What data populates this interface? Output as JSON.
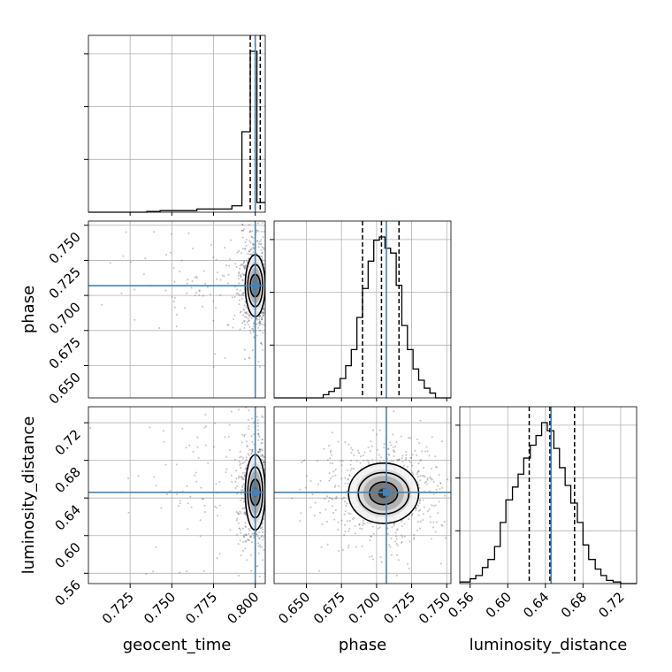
{
  "chart_data": {
    "type": "corner",
    "parameters": [
      "geocent_time",
      "phase",
      "luminosity_distance"
    ],
    "truths": {
      "geocent_time": 0.8,
      "phase": 0.707,
      "luminosity_distance": 0.646
    },
    "grid": true,
    "axes_labels": {
      "x": [
        "geocent_time",
        "phase",
        "luminosity_distance"
      ],
      "y": [
        "phase",
        "luminosity_distance"
      ]
    },
    "ticks": {
      "geocent_time": {
        "range": [
          0.7,
          0.806
        ],
        "values": [
          0.725,
          0.75,
          0.775,
          0.8
        ],
        "labels": [
          "0.725",
          "0.750",
          "0.775",
          "0.800"
        ]
      },
      "phase": {
        "range": [
          0.627,
          0.753
        ],
        "values": [
          0.65,
          0.675,
          0.7,
          0.725,
          0.75
        ],
        "labels": [
          "0.650",
          "0.675",
          "0.700",
          "0.725",
          "0.750"
        ]
      },
      "luminosity_distance": {
        "range": [
          0.549,
          0.737
        ],
        "values": [
          0.56,
          0.6,
          0.64,
          0.68,
          0.72
        ],
        "labels": [
          "0.56",
          "0.60",
          "0.64",
          "0.68",
          "0.72"
        ]
      }
    },
    "histograms": {
      "geocent_time": {
        "quantiles": [
          0.797,
          0.8,
          0.803
        ],
        "bins": [
          [
            0.7,
            0.735,
            0.0
          ],
          [
            0.735,
            0.743,
            0.005
          ],
          [
            0.743,
            0.765,
            0.01
          ],
          [
            0.765,
            0.786,
            0.02
          ],
          [
            0.786,
            0.792,
            0.04
          ],
          [
            0.792,
            0.797,
            0.5
          ],
          [
            0.797,
            0.801,
            1.0
          ],
          [
            0.801,
            0.806,
            0.06
          ]
        ]
      },
      "phase": {
        "quantiles": [
          0.69,
          0.7035,
          0.716
        ],
        "bins": [
          [
            0.627,
            0.662,
            0.0
          ],
          [
            0.662,
            0.666,
            0.02
          ],
          [
            0.666,
            0.67,
            0.04
          ],
          [
            0.67,
            0.674,
            0.06
          ],
          [
            0.674,
            0.678,
            0.12
          ],
          [
            0.678,
            0.682,
            0.2
          ],
          [
            0.682,
            0.686,
            0.3
          ],
          [
            0.686,
            0.69,
            0.5
          ],
          [
            0.69,
            0.694,
            0.68
          ],
          [
            0.694,
            0.698,
            0.85
          ],
          [
            0.698,
            0.702,
            0.98
          ],
          [
            0.702,
            0.706,
            1.0
          ],
          [
            0.706,
            0.71,
            0.93
          ],
          [
            0.71,
            0.714,
            0.9
          ],
          [
            0.714,
            0.718,
            0.7
          ],
          [
            0.718,
            0.722,
            0.45
          ],
          [
            0.722,
            0.726,
            0.3
          ],
          [
            0.726,
            0.73,
            0.18
          ],
          [
            0.73,
            0.734,
            0.11
          ],
          [
            0.734,
            0.738,
            0.06
          ],
          [
            0.738,
            0.742,
            0.03
          ],
          [
            0.742,
            0.753,
            0.0
          ]
        ]
      },
      "luminosity_distance": {
        "quantiles": [
          0.6228,
          0.6448,
          0.671
        ],
        "bins": [
          [
            0.549,
            0.56,
            0.01
          ],
          [
            0.56,
            0.566,
            0.03
          ],
          [
            0.566,
            0.573,
            0.05
          ],
          [
            0.573,
            0.579,
            0.1
          ],
          [
            0.579,
            0.586,
            0.15
          ],
          [
            0.586,
            0.592,
            0.23
          ],
          [
            0.592,
            0.598,
            0.38
          ],
          [
            0.598,
            0.605,
            0.52
          ],
          [
            0.605,
            0.611,
            0.6
          ],
          [
            0.611,
            0.617,
            0.68
          ],
          [
            0.617,
            0.624,
            0.78
          ],
          [
            0.624,
            0.63,
            0.86
          ],
          [
            0.63,
            0.636,
            0.92
          ],
          [
            0.636,
            0.642,
            1.0
          ],
          [
            0.642,
            0.649,
            0.95
          ],
          [
            0.649,
            0.655,
            0.84
          ],
          [
            0.655,
            0.661,
            0.72
          ],
          [
            0.661,
            0.667,
            0.61
          ],
          [
            0.667,
            0.674,
            0.5
          ],
          [
            0.674,
            0.68,
            0.38
          ],
          [
            0.68,
            0.686,
            0.24
          ],
          [
            0.686,
            0.693,
            0.15
          ],
          [
            0.693,
            0.699,
            0.09
          ],
          [
            0.699,
            0.705,
            0.05
          ],
          [
            0.705,
            0.712,
            0.02
          ],
          [
            0.712,
            0.72,
            0.01
          ],
          [
            0.72,
            0.737,
            0.0
          ]
        ]
      }
    },
    "joint": [
      {
        "x": "geocent_time",
        "y": "phase",
        "center": [
          0.8,
          0.707
        ],
        "contour_widths": [
          0.003,
          0.0045,
          0.006
        ],
        "contour_heights": [
          0.008,
          0.015,
          0.022
        ]
      },
      {
        "x": "geocent_time",
        "y": "luminosity_distance",
        "center": [
          0.8,
          0.646
        ],
        "contour_widths": [
          0.003,
          0.0045,
          0.006
        ],
        "contour_heights": [
          0.014,
          0.027,
          0.04
        ]
      },
      {
        "x": "phase",
        "y": "luminosity_distance",
        "center": [
          0.705,
          0.645
        ],
        "contour_widths": [
          0.01,
          0.018,
          0.025
        ],
        "contour_heights": [
          0.012,
          0.022,
          0.032
        ]
      }
    ],
    "colors": {
      "truth": "#4682b4",
      "hist": "#000000",
      "grid": "#b0b0b0"
    }
  }
}
